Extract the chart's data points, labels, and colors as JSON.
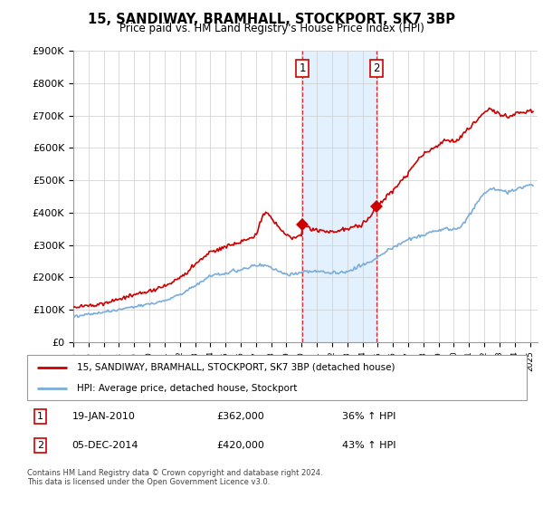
{
  "title_line1": "15, SANDIWAY, BRAMHALL, STOCKPORT, SK7 3BP",
  "title_line2": "Price paid vs. HM Land Registry's House Price Index (HPI)",
  "ylabel_ticks": [
    "£0",
    "£100K",
    "£200K",
    "£300K",
    "£400K",
    "£500K",
    "£600K",
    "£700K",
    "£800K",
    "£900K"
  ],
  "ylim": [
    0,
    900000
  ],
  "xlim_start": 1995.0,
  "xlim_end": 2025.5,
  "legend_label_red": "15, SANDIWAY, BRAMHALL, STOCKPORT, SK7 3BP (detached house)",
  "legend_label_blue": "HPI: Average price, detached house, Stockport",
  "annotation1_date": "19-JAN-2010",
  "annotation1_price": "£362,000",
  "annotation1_hpi": "36% ↑ HPI",
  "annotation2_date": "05-DEC-2014",
  "annotation2_price": "£420,000",
  "annotation2_hpi": "43% ↑ HPI",
  "footer": "Contains HM Land Registry data © Crown copyright and database right 2024.\nThis data is licensed under the Open Government Licence v3.0.",
  "color_red": "#cc0000",
  "color_blue": "#7aaddb",
  "color_shade": "#ddeeff",
  "sale1_x": 2010.05,
  "sale1_y": 362000,
  "sale2_x": 2014.92,
  "sale2_y": 420000
}
